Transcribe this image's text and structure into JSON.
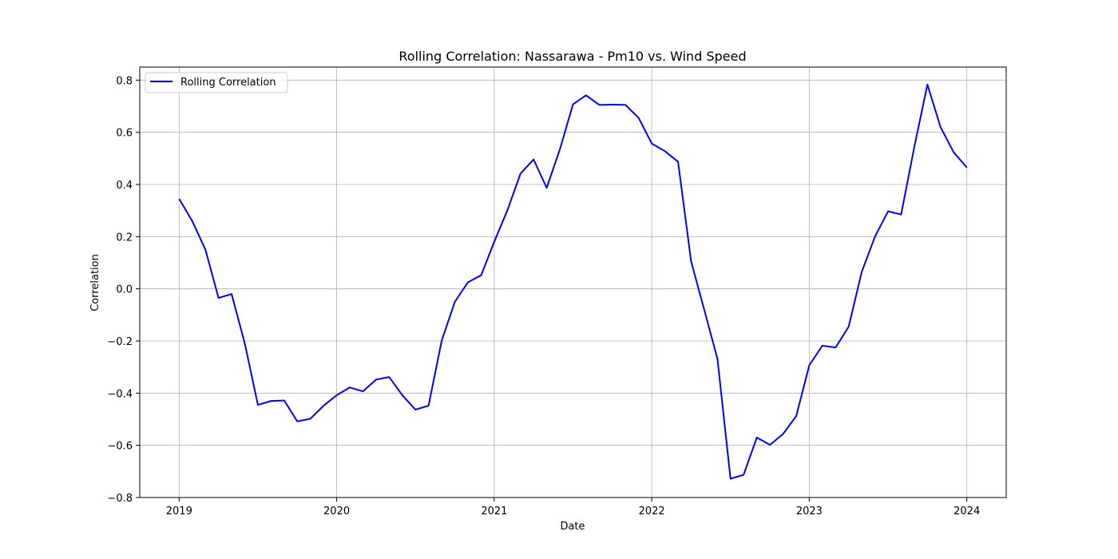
{
  "chart_data": {
    "type": "line",
    "title": "Rolling Correlation: Nassarawa - Pm10 vs. Wind Speed",
    "xlabel": "Date",
    "ylabel": "Correlation",
    "xlim": [
      2018.75,
      2024.25
    ],
    "ylim": [
      -0.8,
      0.85
    ],
    "xticks": [
      2019,
      2020,
      2021,
      2022,
      2023,
      2024
    ],
    "xtick_labels": [
      "2019",
      "2020",
      "2021",
      "2022",
      "2023",
      "2024"
    ],
    "yticks": [
      -0.8,
      -0.6,
      -0.4,
      -0.2,
      0.0,
      0.2,
      0.4,
      0.6,
      0.8
    ],
    "ytick_labels": [
      "−0.8",
      "−0.6",
      "−0.4",
      "−0.2",
      "0.0",
      "0.2",
      "0.4",
      "0.6",
      "0.8"
    ],
    "grid": true,
    "legend_position": "top-left",
    "series": [
      {
        "name": "Rolling Correlation",
        "color": "#0000ff",
        "x": [
          2019.0,
          2019.083,
          2019.167,
          2019.25,
          2019.333,
          2019.417,
          2019.5,
          2019.583,
          2019.667,
          2019.75,
          2019.833,
          2019.917,
          2020.0,
          2020.083,
          2020.167,
          2020.25,
          2020.333,
          2020.417,
          2020.5,
          2020.583,
          2020.667,
          2020.75,
          2020.833,
          2020.917,
          2021.0,
          2021.083,
          2021.167,
          2021.25,
          2021.333,
          2021.417,
          2021.5,
          2021.583,
          2021.667,
          2021.75,
          2021.833,
          2021.917,
          2022.0,
          2022.083,
          2022.167,
          2022.25,
          2022.333,
          2022.417,
          2022.5,
          2022.583,
          2022.667,
          2022.75,
          2022.833,
          2022.917,
          2023.0,
          2023.083,
          2023.167,
          2023.25,
          2023.333,
          2023.417,
          2023.5,
          2023.583,
          2023.667,
          2023.75,
          2023.833,
          2023.917,
          2024.0
        ],
        "values": [
          0.345,
          0.26,
          0.15,
          -0.035,
          -0.02,
          -0.21,
          -0.445,
          -0.43,
          -0.428,
          -0.508,
          -0.498,
          -0.448,
          -0.408,
          -0.378,
          -0.393,
          -0.348,
          -0.338,
          -0.408,
          -0.463,
          -0.448,
          -0.198,
          -0.05,
          0.025,
          0.052,
          0.18,
          0.3,
          0.442,
          0.496,
          0.387,
          0.535,
          0.707,
          0.742,
          0.705,
          0.706,
          0.705,
          0.655,
          0.557,
          0.528,
          0.487,
          0.105,
          -0.08,
          -0.268,
          -0.728,
          -0.713,
          -0.57,
          -0.598,
          -0.557,
          -0.488,
          -0.293,
          -0.218,
          -0.225,
          -0.145,
          0.065,
          0.2,
          0.297,
          0.285,
          0.545,
          0.783,
          0.62,
          0.523,
          0.465
        ]
      }
    ]
  }
}
